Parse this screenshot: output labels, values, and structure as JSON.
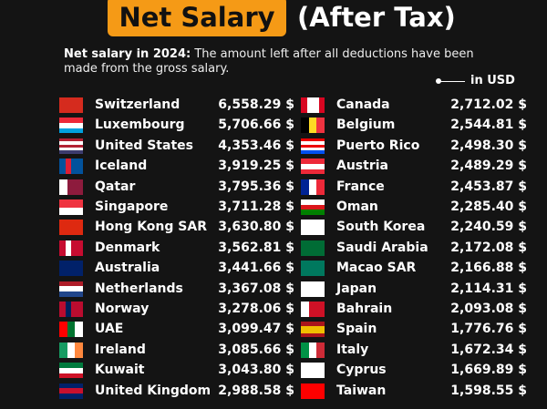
{
  "header": {
    "title": "Net Salary",
    "title_suffix": "(After Tax)",
    "subtitle_label": "Net salary in 2024:",
    "subtitle_text": "The amount left after all deductions have been made from the gross salary.",
    "unit": "in USD"
  },
  "table": {
    "columns": [
      {
        "rows": [
          [
            "Switzerland",
            "6,558.29 $"
          ],
          [
            "Luxembourg",
            "5,706.66 $"
          ],
          [
            "United States",
            "4,353.46 $"
          ],
          [
            "Iceland",
            "3,919.25 $"
          ],
          [
            "Qatar",
            "3,795.36 $"
          ],
          [
            "Singapore",
            "3,711.28 $"
          ],
          [
            "Hong Kong SAR",
            "3,630.80 $"
          ],
          [
            "Denmark",
            "3,562.81 $"
          ],
          [
            "Australia",
            "3,441.66 $"
          ],
          [
            "Netherlands",
            "3,367.08 $"
          ],
          [
            "Norway",
            "3,278.06 $"
          ],
          [
            "UAE",
            "3,099.47 $"
          ],
          [
            "Ireland",
            "3,085.66 $"
          ],
          [
            "Kuwait",
            "3,043.80 $"
          ],
          [
            "United Kingdom",
            "2,988.58 $"
          ]
        ]
      },
      {
        "rows": [
          [
            "Canada",
            "2,712.02 $"
          ],
          [
            "Belgium",
            "2,544.81 $"
          ],
          [
            "Puerto Rico",
            "2,498.30 $"
          ],
          [
            "Austria",
            "2,489.29 $"
          ],
          [
            "France",
            "2,453.87 $"
          ],
          [
            "Oman",
            "2,285.40 $"
          ],
          [
            "South Korea",
            "2,240.59 $"
          ],
          [
            "Saudi Arabia",
            "2,172.08 $"
          ],
          [
            "Macao SAR",
            "2,166.88 $"
          ],
          [
            "Japan",
            "2,114.31 $"
          ],
          [
            "Bahrain",
            "2,093.08 $"
          ],
          [
            "Spain",
            "1,776.76 $"
          ],
          [
            "Italy",
            "1,672.34 $"
          ],
          [
            "Cyprus",
            "1,669.89 $"
          ],
          [
            "Taiwan",
            "1,598.55 $"
          ]
        ]
      }
    ]
  }
}
